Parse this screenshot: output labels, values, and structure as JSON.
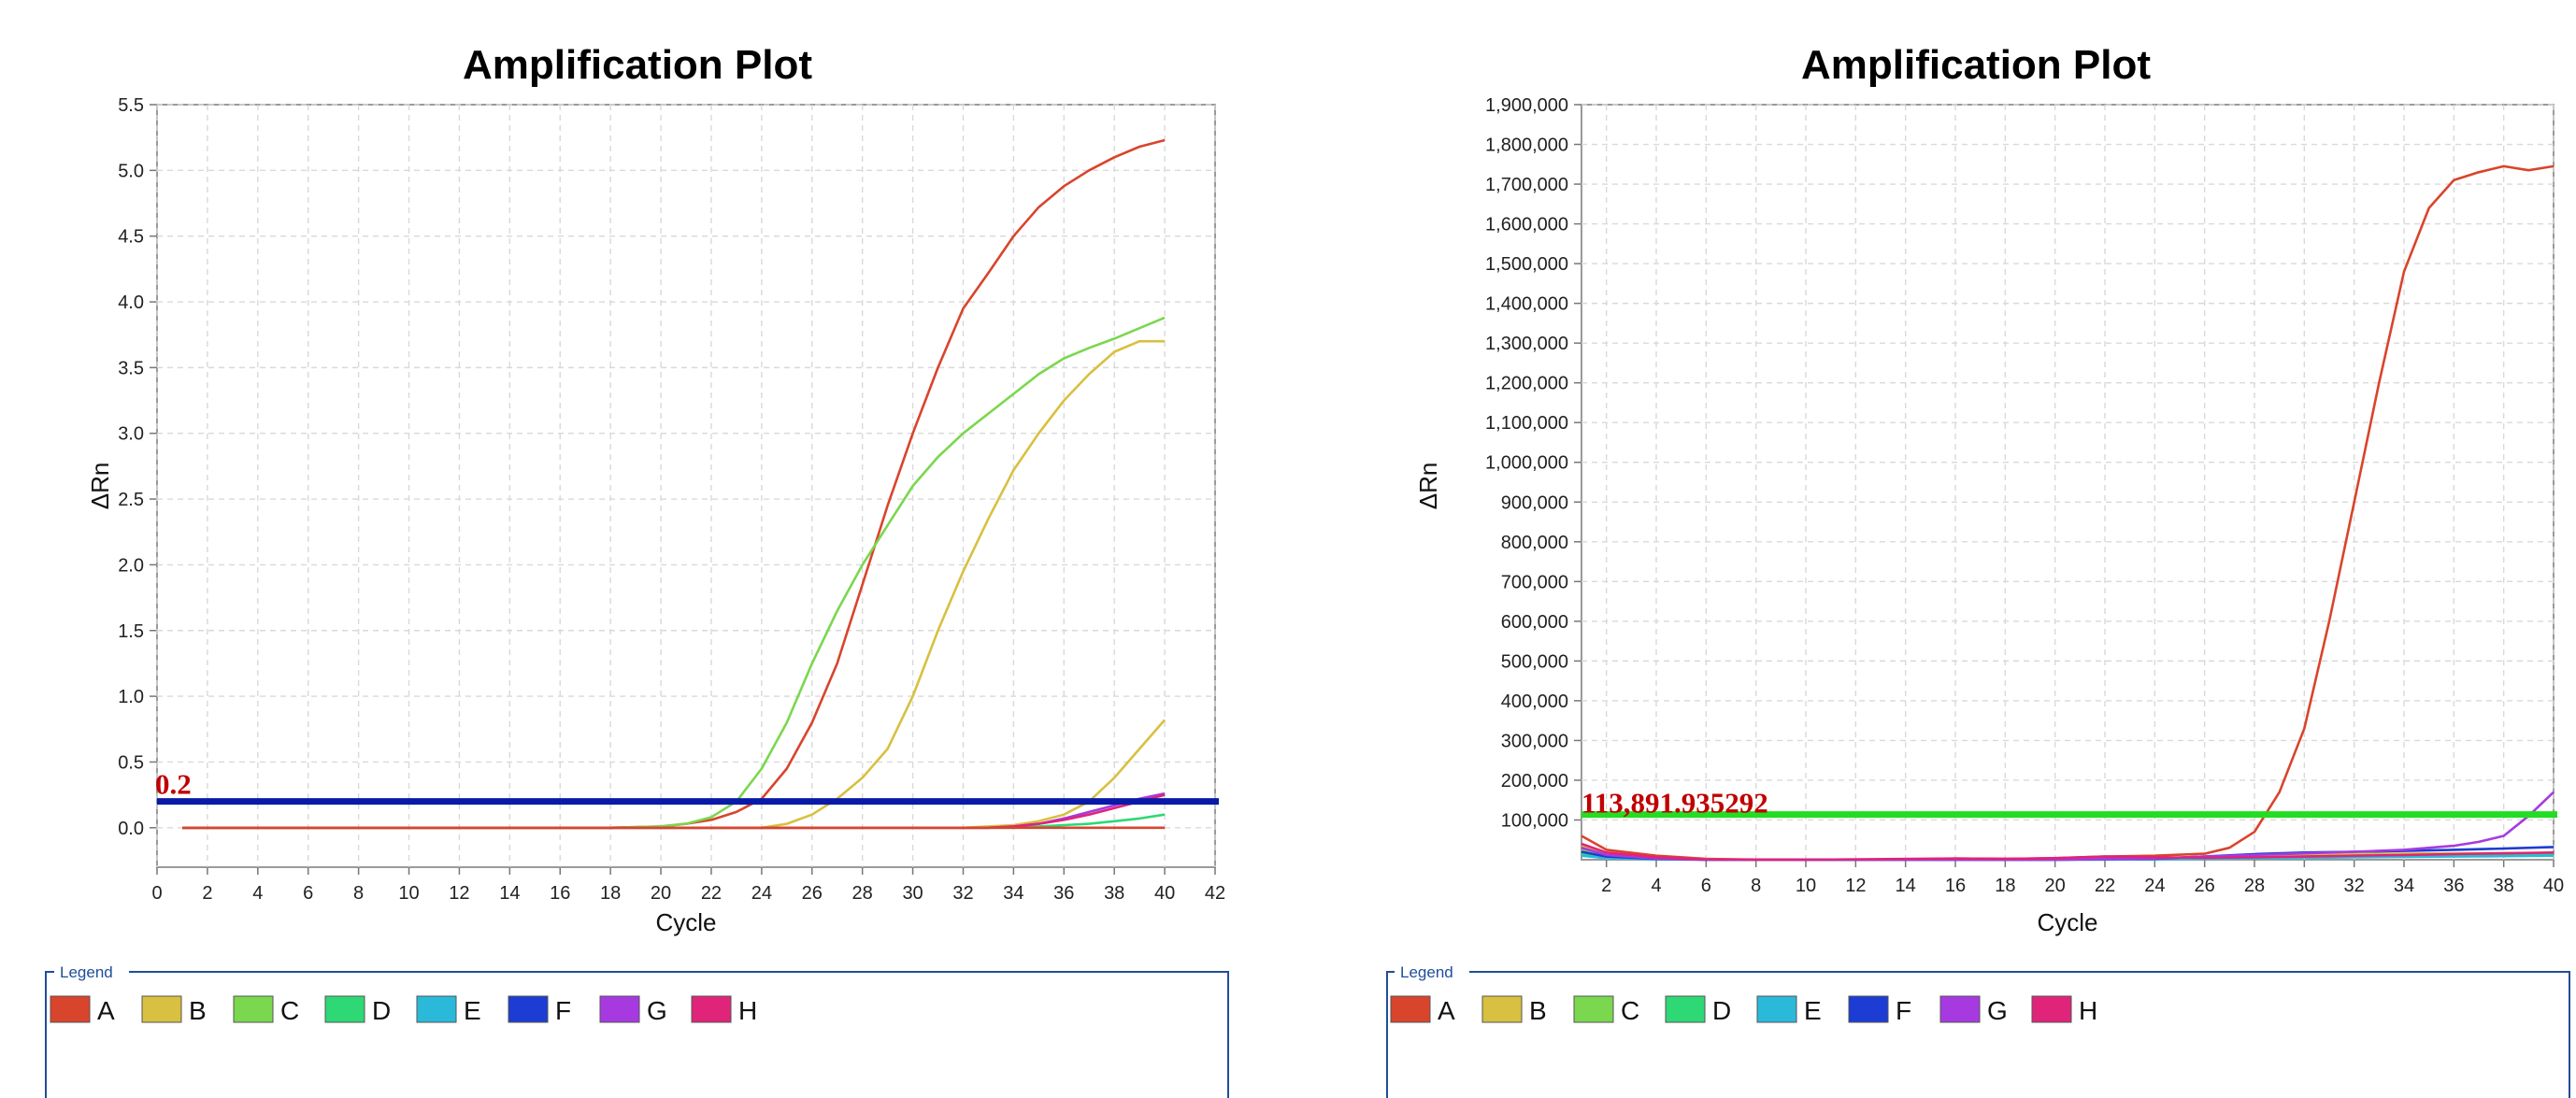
{
  "colors": {
    "A": "#d9442c",
    "B": "#d8c040",
    "C": "#7ad74e",
    "D": "#2ed875",
    "E": "#2ab9d9",
    "F": "#1c3cd4",
    "G": "#a63ae0",
    "H": "#e0247a",
    "threshold_left": "#0a1aa8",
    "threshold_right": "#22dd22",
    "threshold_text": "#c00000",
    "legend_border": "#1f4e9a"
  },
  "legend": {
    "title": "Legend",
    "items": [
      "A",
      "B",
      "C",
      "D",
      "E",
      "F",
      "G",
      "H"
    ]
  },
  "chart_data": [
    {
      "type": "line",
      "title": "Amplification Plot",
      "xlabel": "Cycle",
      "ylabel": "ΔRn",
      "xlim": [
        0,
        42
      ],
      "ylim": [
        -0.3,
        5.5
      ],
      "xticks": [
        0,
        2,
        4,
        6,
        8,
        10,
        12,
        14,
        16,
        18,
        20,
        22,
        24,
        26,
        28,
        30,
        32,
        34,
        36,
        38,
        40,
        42
      ],
      "yticks": [
        0.0,
        0.5,
        1.0,
        1.5,
        2.0,
        2.5,
        3.0,
        3.5,
        4.0,
        4.5,
        5.0,
        5.5
      ],
      "ytick_labels": [
        "0.0",
        "0.5",
        "1.0",
        "1.5",
        "2.0",
        "2.5",
        "3.0",
        "3.5",
        "4.0",
        "4.5",
        "5.0",
        "5.5"
      ],
      "grid": true,
      "threshold": 0.2,
      "threshold_label": "0.2",
      "series": [
        {
          "key": "A",
          "x": [
            1,
            18,
            20,
            21,
            22,
            23,
            24,
            25,
            26,
            27,
            28,
            29,
            30,
            31,
            32,
            33,
            34,
            35,
            36,
            37,
            38,
            39,
            40
          ],
          "y": [
            0,
            0,
            0.01,
            0.03,
            0.06,
            0.12,
            0.22,
            0.45,
            0.8,
            1.25,
            1.85,
            2.45,
            3.0,
            3.5,
            3.95,
            4.22,
            4.5,
            4.72,
            4.88,
            5.0,
            5.1,
            5.18,
            5.23
          ]
        },
        {
          "key": "B",
          "x": [
            1,
            24,
            25,
            26,
            27,
            28,
            29,
            30,
            31,
            32,
            33,
            34,
            35,
            36,
            37,
            38,
            39,
            40
          ],
          "y": [
            0,
            0,
            0.03,
            0.1,
            0.22,
            0.38,
            0.6,
            1.0,
            1.5,
            1.95,
            2.35,
            2.72,
            3.0,
            3.25,
            3.45,
            3.62,
            3.7,
            3.7
          ]
        },
        {
          "key": "B",
          "x": [
            1,
            32,
            33,
            34,
            35,
            36,
            37,
            38,
            39,
            40
          ],
          "y": [
            0,
            0,
            0.01,
            0.02,
            0.05,
            0.1,
            0.2,
            0.38,
            0.6,
            0.82
          ]
        },
        {
          "key": "C",
          "x": [
            1,
            18,
            20,
            21,
            22,
            23,
            24,
            25,
            26,
            27,
            28,
            29,
            30,
            31,
            32,
            33,
            34,
            35,
            36,
            37,
            38,
            39,
            40
          ],
          "y": [
            0,
            0,
            0.01,
            0.03,
            0.08,
            0.2,
            0.45,
            0.8,
            1.25,
            1.65,
            2.0,
            2.3,
            2.6,
            2.82,
            3.0,
            3.15,
            3.3,
            3.45,
            3.57,
            3.65,
            3.72,
            3.8,
            3.88
          ]
        },
        {
          "key": "D",
          "x": [
            1,
            34,
            35,
            36,
            37,
            38,
            39,
            40
          ],
          "y": [
            0,
            0,
            0.01,
            0.02,
            0.03,
            0.05,
            0.07,
            0.1
          ]
        },
        {
          "key": "G",
          "x": [
            1,
            33,
            34,
            35,
            36,
            37,
            38,
            39,
            40
          ],
          "y": [
            0,
            0,
            0.01,
            0.03,
            0.07,
            0.12,
            0.17,
            0.22,
            0.26
          ]
        },
        {
          "key": "H",
          "x": [
            1,
            33,
            34,
            35,
            36,
            37,
            38,
            39,
            40
          ],
          "y": [
            0,
            0,
            0.01,
            0.03,
            0.06,
            0.1,
            0.15,
            0.2,
            0.25
          ]
        },
        {
          "key": "A",
          "x": [
            1,
            40
          ],
          "y": [
            0,
            0
          ]
        }
      ]
    },
    {
      "type": "line",
      "title": "Amplification Plot",
      "xlabel": "Cycle",
      "ylabel": "ΔRn",
      "xlim": [
        1,
        40
      ],
      "ylim": [
        0,
        1900000
      ],
      "xticks": [
        2,
        4,
        6,
        8,
        10,
        12,
        14,
        16,
        18,
        20,
        22,
        24,
        26,
        28,
        30,
        32,
        34,
        36,
        38,
        40
      ],
      "yticks": [
        100000,
        200000,
        300000,
        400000,
        500000,
        600000,
        700000,
        800000,
        900000,
        1000000,
        1100000,
        1200000,
        1300000,
        1400000,
        1500000,
        1600000,
        1700000,
        1800000,
        1900000
      ],
      "ytick_labels": [
        "100,000",
        "200,000",
        "300,000",
        "400,000",
        "500,000",
        "600,000",
        "700,000",
        "800,000",
        "900,000",
        "1,000,000",
        "1,100,000",
        "1,200,000",
        "1,300,000",
        "1,400,000",
        "1,500,000",
        "1,600,000",
        "1,700,000",
        "1,800,000",
        "1,900,000"
      ],
      "grid": true,
      "threshold": 113891.935292,
      "threshold_label": "113,891.935292",
      "series": [
        {
          "key": "A",
          "x": [
            1,
            2,
            4,
            6,
            8,
            10,
            14,
            16,
            18,
            20,
            22,
            24,
            26,
            27,
            28,
            29,
            30,
            31,
            32,
            33,
            34,
            35,
            36,
            37,
            38,
            39,
            40
          ],
          "y": [
            60000,
            25000,
            10000,
            2000,
            0,
            0,
            0,
            3000,
            2000,
            4000,
            8000,
            10000,
            15000,
            30000,
            70000,
            170000,
            330000,
            600000,
            900000,
            1200000,
            1480000,
            1640000,
            1710000,
            1730000,
            1745000,
            1735000,
            1745000
          ]
        },
        {
          "key": "B",
          "x": [
            1,
            2,
            4,
            6,
            10,
            20,
            24,
            26,
            28,
            30,
            32,
            34,
            36,
            38,
            40
          ],
          "y": [
            35000,
            15000,
            5000,
            1000,
            0,
            0,
            3000,
            6000,
            9000,
            12000,
            14000,
            15000,
            16000,
            17000,
            17000
          ]
        },
        {
          "key": "C",
          "x": [
            1,
            2,
            4,
            6,
            10,
            20,
            24,
            26,
            28,
            30,
            32,
            34,
            36,
            38,
            40
          ],
          "y": [
            25000,
            10000,
            3000,
            0,
            0,
            0,
            2000,
            4000,
            6000,
            8000,
            10000,
            12000,
            14000,
            15000,
            16000
          ]
        },
        {
          "key": "D",
          "x": [
            1,
            2,
            4,
            6,
            10,
            20,
            24,
            26,
            28,
            30,
            32,
            34,
            36,
            38,
            40
          ],
          "y": [
            15000,
            6000,
            2000,
            0,
            0,
            0,
            1000,
            3000,
            5000,
            7000,
            9000,
            10000,
            11000,
            12000,
            13000
          ]
        },
        {
          "key": "E",
          "x": [
            1,
            2,
            4,
            6,
            10,
            20,
            24,
            26,
            28,
            30,
            32,
            34,
            36,
            38,
            40
          ],
          "y": [
            10000,
            4000,
            1000,
            0,
            0,
            0,
            1000,
            2000,
            3000,
            5000,
            6000,
            7000,
            8000,
            9000,
            10000
          ]
        },
        {
          "key": "F",
          "x": [
            1,
            2,
            4,
            6,
            10,
            20,
            24,
            26,
            28,
            30,
            32,
            34,
            36,
            38,
            40
          ],
          "y": [
            20000,
            8000,
            2000,
            0,
            0,
            0,
            2000,
            8000,
            14000,
            18000,
            20000,
            22000,
            25000,
            28000,
            32000
          ]
        },
        {
          "key": "G",
          "x": [
            1,
            2,
            4,
            6,
            10,
            20,
            24,
            26,
            28,
            30,
            32,
            34,
            36,
            37,
            38,
            39,
            40
          ],
          "y": [
            30000,
            12000,
            3000,
            0,
            0,
            0,
            3000,
            8000,
            12000,
            16000,
            20000,
            25000,
            35000,
            45000,
            60000,
            110000,
            170000
          ]
        },
        {
          "key": "H",
          "x": [
            1,
            2,
            4,
            6,
            10,
            16,
            18,
            20,
            22,
            24,
            26,
            28,
            30,
            32,
            34,
            36,
            38,
            40
          ],
          "y": [
            40000,
            18000,
            6000,
            1000,
            0,
            3000,
            2000,
            4000,
            8000,
            6000,
            5000,
            6000,
            8000,
            10000,
            12000,
            14000,
            16000,
            18000
          ]
        }
      ]
    }
  ]
}
